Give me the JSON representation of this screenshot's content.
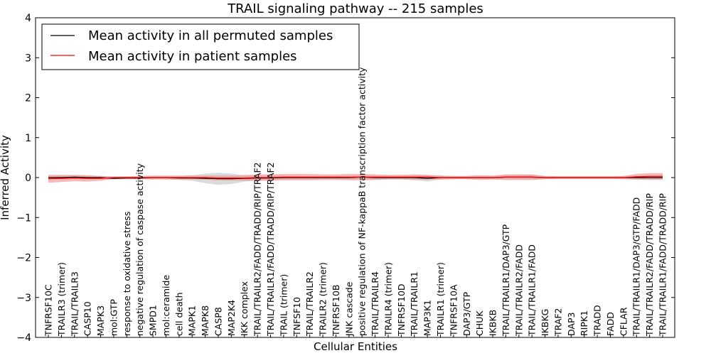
{
  "chart_data": {
    "type": "line",
    "title": "TRAIL signaling pathway -- 215 samples",
    "xlabel": "Cellular Entities",
    "ylabel": "Inferred Activity",
    "ylim": [
      -4,
      4
    ],
    "yticks": [
      -4,
      -3,
      -2,
      -1,
      0,
      1,
      2,
      3,
      4
    ],
    "ytick_labels": [
      "−4",
      "−3",
      "−2",
      "−1",
      "0",
      "1",
      "2",
      "3",
      "4"
    ],
    "legend_position": "top-left",
    "categories": [
      "TNFRSF10C",
      "TRAILR3 (trimer)",
      "TRAIL/TRAILR3",
      "CASP10",
      "MAPK3",
      "mol:GTP",
      "response to oxidative stress",
      "negative regulation of caspase activity",
      "SMPD1",
      "mol:ceramide",
      "cell death",
      "MAPK1",
      "MAPK8",
      "CASP8",
      "MAP2K4",
      "IKK complex",
      "TRAIL/TRAILR2/FADD/TRADD/RIP/TRAF2",
      "TRAIL/TRAILR1/FADD/TRADD/RIP/TRAF2",
      "TRAIL (trimer)",
      "TNFSF10",
      "TRAIL/TRAILR2",
      "TRAILR2 (trimer)",
      "TNFRSF10B",
      "JNK cascade",
      "positive regulation of NF-kappaB transcription factor activity",
      "TRAIL/TRAILR4",
      "TRAILR4 (trimer)",
      "TNFRSF10D",
      "TRAIL/TRAILR1",
      "MAP3K1",
      "TRAILR1 (trimer)",
      "TNFRSF10A",
      "DAP3/GTP",
      "CHUK",
      "IKBKB",
      "TRAIL/TRAILR1/DAP3/GTP",
      "TRAIL/TRAILR2/FADD",
      "TRAIL/TRAILR1/FADD",
      "IKBKG",
      "TRAF2",
      "DAP3",
      "RIPK1",
      "TRADD",
      "FADD",
      "CFLAR",
      "TRAIL/TRAILR1/DAP3/GTP/FADD",
      "TRAIL/TRAILR2/FADD/TRADD/RIP",
      "TRAIL/TRAILR1/FADD/TRADD/RIP"
    ],
    "series": [
      {
        "name": "Mean activity in all permuted samples",
        "color": "#000000",
        "band_color": "#b0b0b0",
        "values": [
          0.0,
          0.0,
          0.01,
          0.0,
          0.0,
          -0.02,
          -0.01,
          -0.01,
          0.0,
          0.0,
          -0.01,
          -0.01,
          -0.02,
          -0.03,
          -0.03,
          -0.02,
          -0.01,
          -0.01,
          0.0,
          0.0,
          0.0,
          0.0,
          0.0,
          0.0,
          0.01,
          0.0,
          0.0,
          0.0,
          0.0,
          -0.02,
          0.0,
          0.0,
          0.0,
          0.0,
          0.0,
          0.01,
          0.01,
          0.01,
          0.0,
          0.0,
          0.0,
          0.0,
          0.0,
          0.0,
          0.0,
          0.0,
          0.0,
          0.0
        ],
        "band": [
          0.04,
          0.04,
          0.05,
          0.04,
          0.04,
          0.03,
          0.04,
          0.04,
          0.04,
          0.04,
          0.05,
          0.07,
          0.12,
          0.15,
          0.13,
          0.08,
          0.06,
          0.05,
          0.05,
          0.04,
          0.04,
          0.04,
          0.04,
          0.04,
          0.05,
          0.05,
          0.04,
          0.04,
          0.06,
          0.08,
          0.05,
          0.04,
          0.04,
          0.04,
          0.04,
          0.05,
          0.06,
          0.06,
          0.04,
          0.04,
          0.04,
          0.04,
          0.04,
          0.04,
          0.04,
          0.05,
          0.06,
          0.06
        ]
      },
      {
        "name": "Mean activity in patient samples",
        "color": "#ff0000",
        "band_color": "#f08080",
        "values": [
          -0.03,
          -0.02,
          -0.01,
          -0.02,
          -0.02,
          0.0,
          0.0,
          0.0,
          0.0,
          0.0,
          0.0,
          0.0,
          0.0,
          -0.01,
          -0.01,
          -0.01,
          0.0,
          0.0,
          0.01,
          0.01,
          0.01,
          0.01,
          0.01,
          0.01,
          0.01,
          0.01,
          0.01,
          0.01,
          0.01,
          0.01,
          0.0,
          0.0,
          0.0,
          0.0,
          0.0,
          0.01,
          0.01,
          0.01,
          0.0,
          0.0,
          0.0,
          0.0,
          0.0,
          0.0,
          0.0,
          0.02,
          0.03,
          0.03
        ],
        "band": [
          0.1,
          0.09,
          0.08,
          0.08,
          0.06,
          0.03,
          0.03,
          0.04,
          0.05,
          0.05,
          0.05,
          0.05,
          0.05,
          0.06,
          0.06,
          0.07,
          0.08,
          0.08,
          0.08,
          0.08,
          0.08,
          0.07,
          0.07,
          0.08,
          0.08,
          0.07,
          0.06,
          0.06,
          0.07,
          0.06,
          0.05,
          0.04,
          0.04,
          0.06,
          0.05,
          0.07,
          0.07,
          0.07,
          0.04,
          0.03,
          0.03,
          0.03,
          0.03,
          0.03,
          0.04,
          0.07,
          0.08,
          0.08
        ]
      }
    ]
  }
}
